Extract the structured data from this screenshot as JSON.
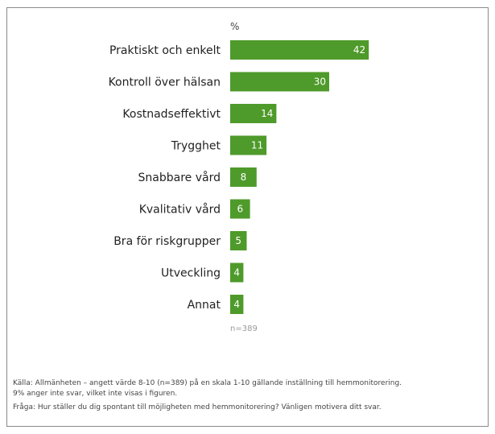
{
  "chart_data": {
    "type": "bar",
    "orientation": "horizontal",
    "unit_label": "%",
    "categories": [
      "Praktiskt och enkelt",
      "Kontroll över hälsan",
      "Kostnadseffektivt",
      "Trygghet",
      "Snabbare vård",
      "Kvalitativ vård",
      "Bra för riskgrupper",
      "Utveckling",
      "Annat"
    ],
    "values": [
      42,
      30,
      14,
      11,
      8,
      6,
      5,
      4,
      4
    ],
    "bar_color": "#4e9a2a",
    "xlim": [
      0,
      60
    ],
    "grid": false,
    "sample_note": "n=389"
  },
  "notes": {
    "source_line1": "Källa: Allmänheten – angett värde 8-10 (n=389) på en skala 1-10 gällande inställning till hemmonitorering.",
    "source_line2": "9% anger inte svar, vilket inte visas i figuren.",
    "question": "Fråga: Hur ställer du dig spontant till möjligheten med hemmonitorering? Vänligen motivera ditt svar."
  }
}
